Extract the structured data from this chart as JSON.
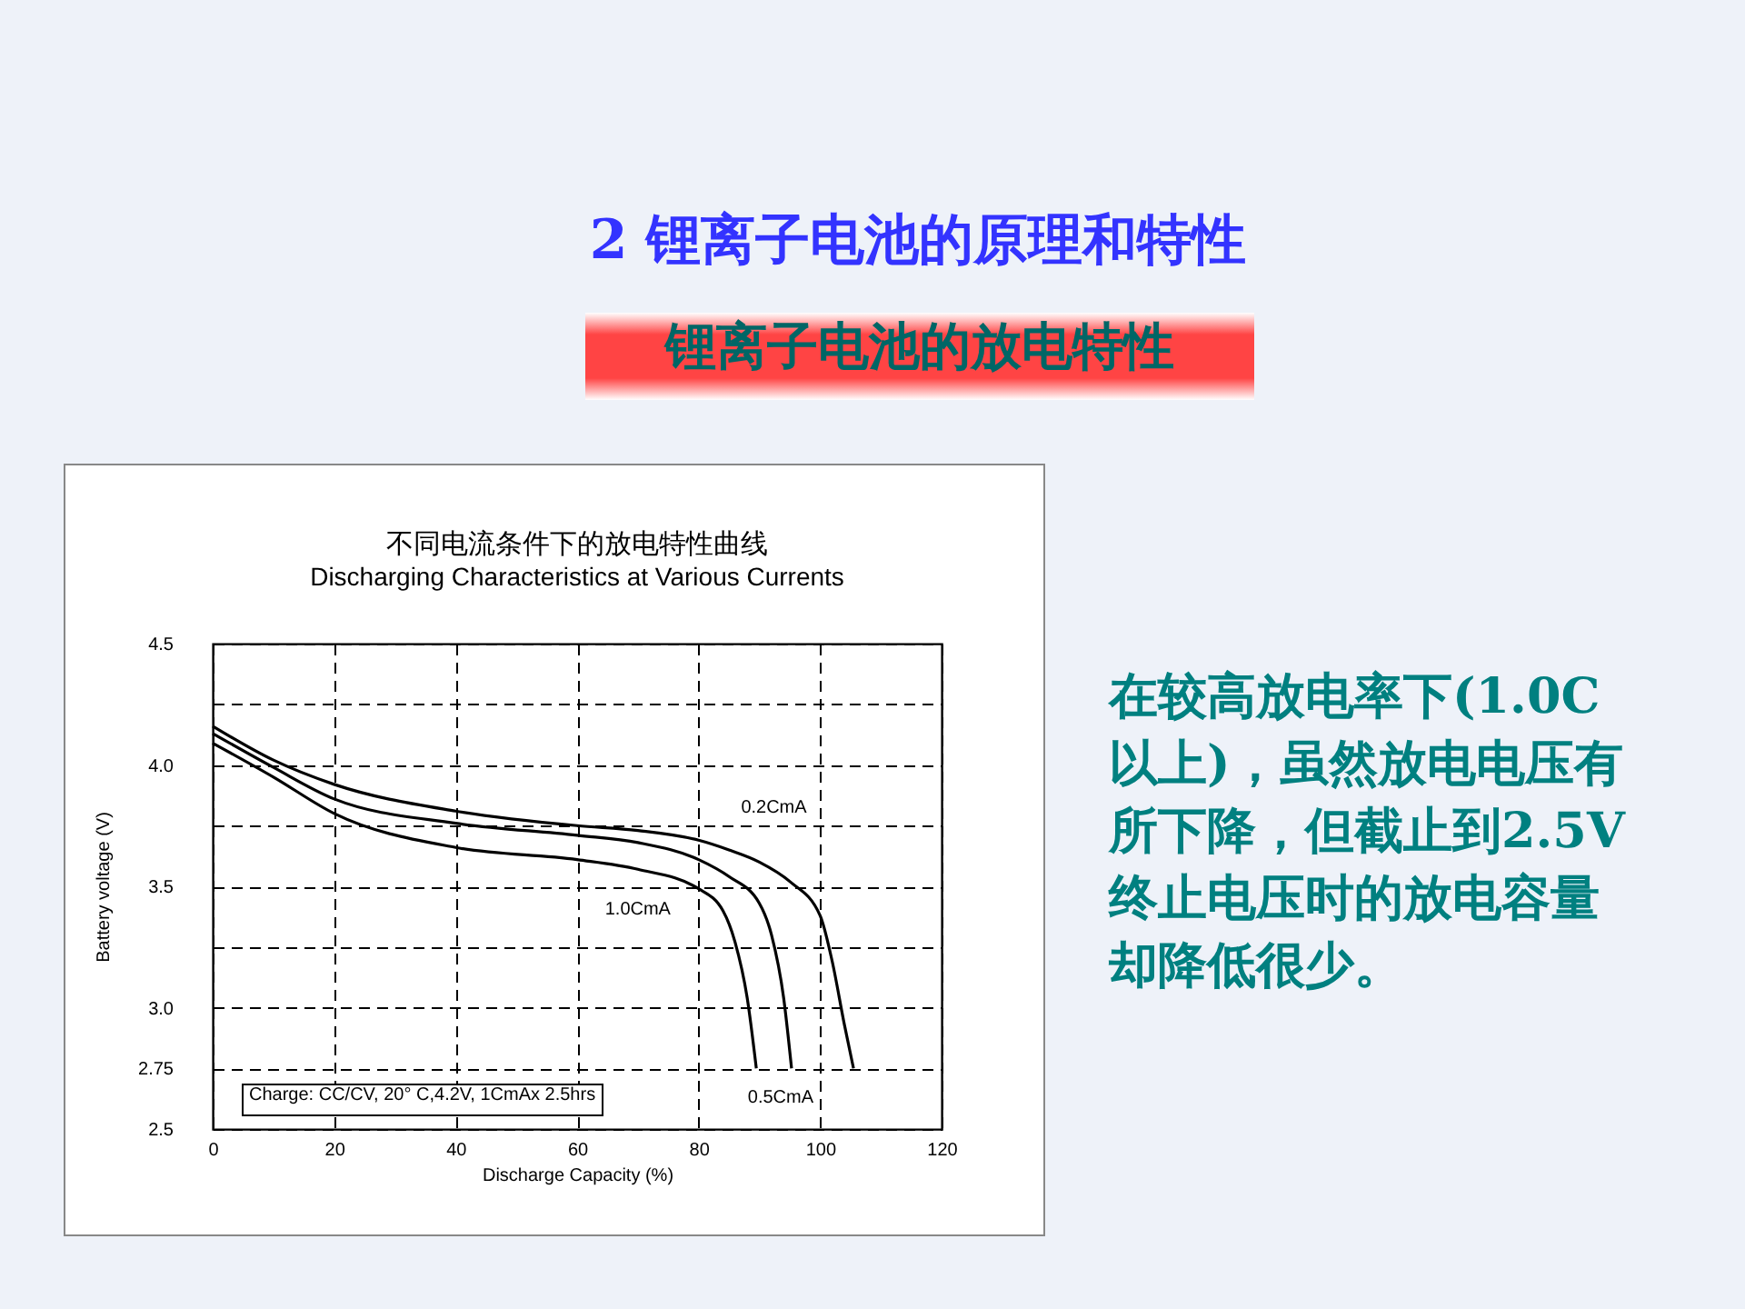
{
  "chart_data": {
    "type": "line",
    "title": "不同电流条件下的放电特性曲线",
    "subtitle": "Discharging Characteristics at Various Currents",
    "xlabel": "Discharge Capacity (%)",
    "ylabel": "Battery voltage (V)",
    "annotations": [
      "2 锂离子电池的原理和特性",
      "锂离子电池的放电特性",
      "在较高放电率下(1.0C以上)，虽然放电电压有所下降，但截止到2.5V终止电压时的放电容量却降低很少。",
      "Charge: CC/CV, 20° C,4.2V, 1CmAx 2.5hrs"
    ],
    "series": [
      {
        "name": "0.2CmA",
        "color": "#000000",
        "x": [
          0,
          10,
          20,
          40,
          60,
          70,
          80,
          85,
          90,
          95,
          100,
          102,
          104,
          105.5
        ],
        "values": [
          4.16,
          4.02,
          3.92,
          3.81,
          3.75,
          3.73,
          3.69,
          3.65,
          3.6,
          3.52,
          3.38,
          3.19,
          2.93,
          2.75
        ]
      },
      {
        "name": "0.5CmA",
        "color": "#000000",
        "x": [
          0,
          10,
          20,
          40,
          60,
          70,
          80,
          85,
          90,
          92,
          94,
          95.3
        ],
        "values": [
          4.13,
          3.99,
          3.86,
          3.76,
          3.71,
          3.68,
          3.61,
          3.54,
          3.43,
          3.3,
          3.04,
          2.75
        ]
      },
      {
        "name": "1.0CmA",
        "color": "#000000",
        "x": [
          0,
          10,
          20,
          40,
          60,
          70,
          80,
          84,
          86,
          88,
          89.5
        ],
        "values": [
          4.09,
          3.95,
          3.8,
          3.66,
          3.61,
          3.57,
          3.49,
          3.4,
          3.27,
          3.04,
          2.75
        ]
      }
    ],
    "xlim": [
      0,
      120
    ],
    "xticks": [
      0,
      20,
      40,
      60,
      80,
      100,
      120
    ],
    "ylim": [
      2.5,
      4.5
    ],
    "yticks": [
      2.5,
      2.75,
      {
        "value": 3,
        "label": "3.0"
      },
      {
        "value": 3.25,
        "label": null
      },
      {
        "value": 3.5,
        "label": "3.5"
      },
      {
        "value": 3.75,
        "label": null
      },
      {
        "value": 4,
        "label": "4.0"
      },
      {
        "value": 4.25,
        "label": null
      },
      {
        "value": 4.5,
        "label": "4.5"
      }
    ],
    "grid": true,
    "line_style": "solid",
    "marker": "none"
  }
}
